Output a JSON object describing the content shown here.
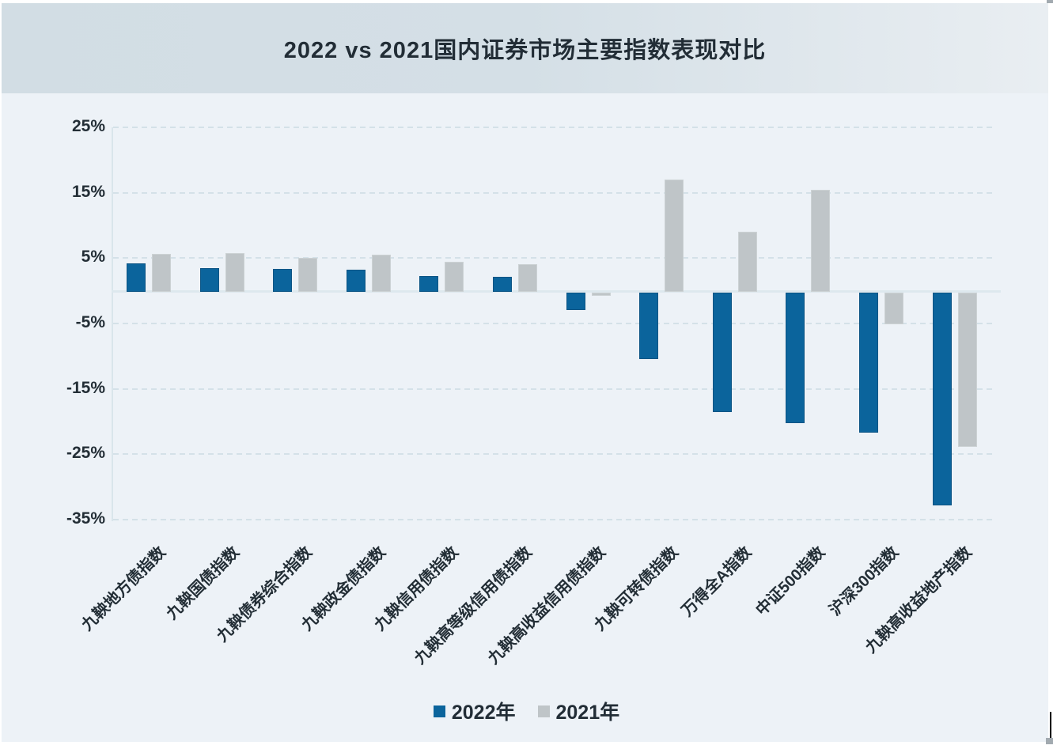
{
  "chart_data": {
    "type": "bar",
    "title": "2022 vs 2021国内证券市场主要指数表现对比",
    "categories": [
      "九鞅地方债指数",
      "九鞅国债指数",
      "九鞅债券综合指数",
      "九鞅政金债指数",
      "九鞅信用债指数",
      "九鞅高等级信用债指数",
      "九鞅高收益信用债指数",
      "九鞅可转债指数",
      "万得全A指数",
      "中证500指数",
      "沪深300指数",
      "九鞅高收益地产指数"
    ],
    "series": [
      {
        "name": "2022年",
        "year": "2022",
        "color": "#0b649c",
        "border_color": "#0d5585",
        "values": [
          4.2,
          3.5,
          3.3,
          3.2,
          2.3,
          2.1,
          -3.0,
          -10.4,
          -18.6,
          -20.3,
          -21.7,
          -32.8
        ]
      },
      {
        "name": "2021年",
        "year": "2021",
        "color": "#bfc5c8",
        "border_color": "#ccd2d4",
        "values": [
          5.7,
          5.8,
          5.1,
          5.5,
          4.4,
          4.1,
          -0.8,
          17.0,
          9.0,
          15.4,
          -5.1,
          -23.9
        ]
      }
    ],
    "unit": "%",
    "ylim": [
      -35,
      25
    ],
    "y_tick_values": [
      25,
      15,
      5,
      -5,
      -15,
      -25,
      -35
    ],
    "y_tick_labels": [
      "25%",
      "15%",
      "5%",
      "-5%",
      "-15%",
      "-25%",
      "-35%"
    ],
    "grid": "dashed-horizontal",
    "legend_position": "bottom"
  }
}
